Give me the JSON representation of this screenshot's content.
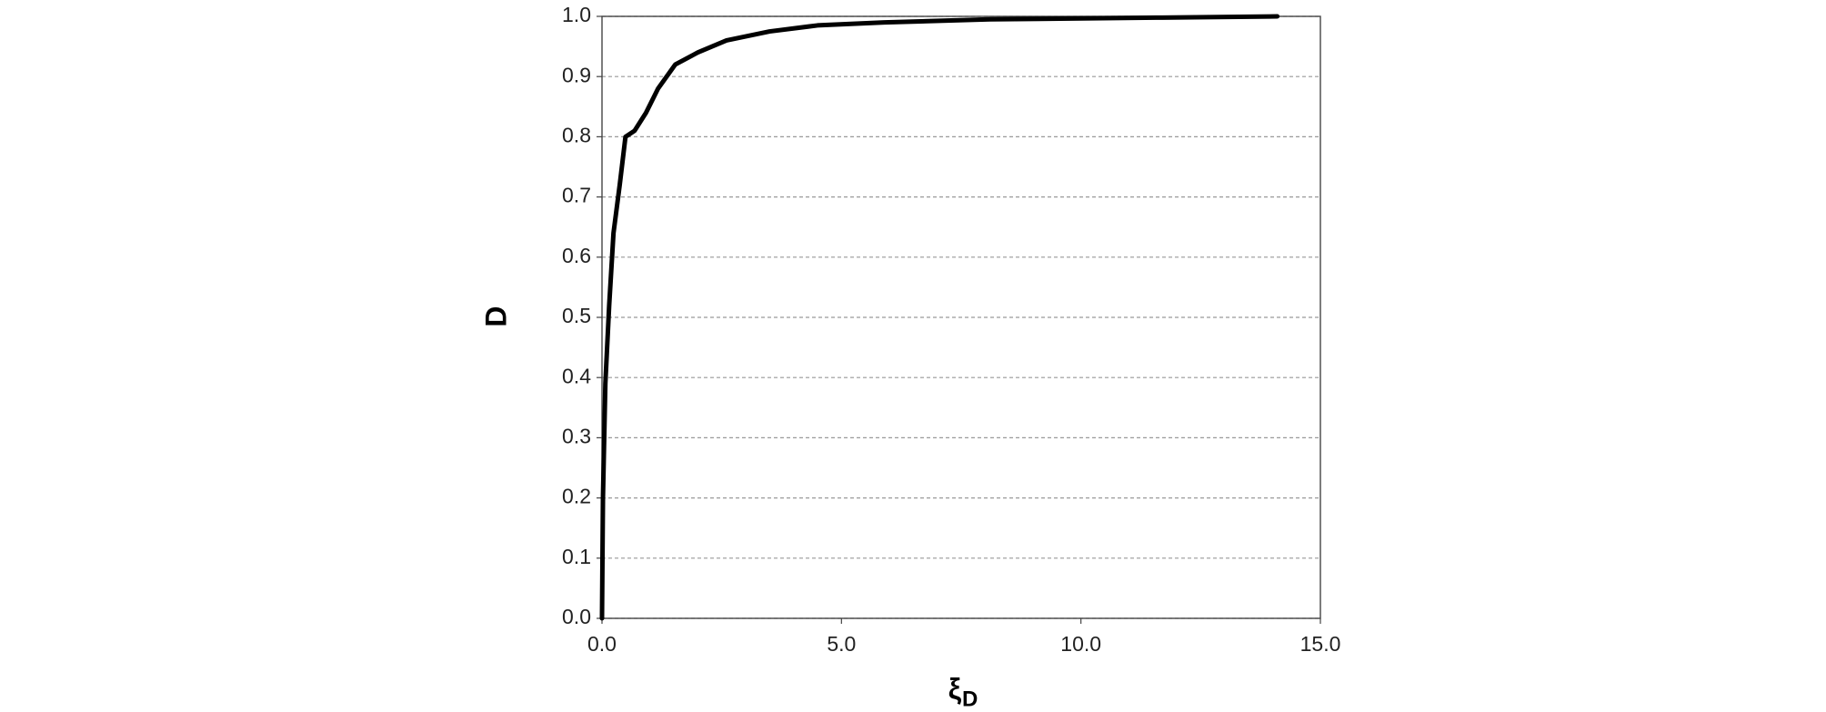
{
  "chart_data": {
    "type": "line",
    "x_label": "ξ",
    "x_label_subscript": "D",
    "y_label": "D",
    "x": [
      0,
      0.02,
      0.07,
      0.15,
      0.24,
      0.37,
      0.49,
      0.68,
      0.92,
      1.17,
      1.53,
      2.0,
      2.6,
      3.5,
      4.5,
      5.9,
      8.1,
      11.7,
      14.1
    ],
    "values": [
      0,
      0.2,
      0.39,
      0.52,
      0.64,
      0.72,
      0.8,
      0.81,
      0.84,
      0.88,
      0.92,
      0.94,
      0.96,
      0.975,
      0.985,
      0.99,
      0.995,
      0.998,
      1.0
    ],
    "color": "#000000",
    "xlim": [
      0,
      15
    ],
    "ylim": [
      0,
      1
    ],
    "xticks": [
      {
        "value": 0,
        "label": "0.0"
      },
      {
        "value": 5,
        "label": "5.0"
      },
      {
        "value": 10,
        "label": "10.0"
      },
      {
        "value": 15,
        "label": "15.0"
      }
    ],
    "yticks": [
      {
        "value": 0,
        "label": "0.0"
      },
      {
        "value": 0.1,
        "label": "0.1"
      },
      {
        "value": 0.2,
        "label": "0.2"
      },
      {
        "value": 0.3,
        "label": "0.3"
      },
      {
        "value": 0.4,
        "label": "0.4"
      },
      {
        "value": 0.5,
        "label": "0.5"
      },
      {
        "value": 0.6,
        "label": "0.6"
      },
      {
        "value": 0.7,
        "label": "0.7"
      },
      {
        "value": 0.8,
        "label": "0.8"
      },
      {
        "value": 0.9,
        "label": "0.9"
      },
      {
        "value": 1,
        "label": "1.0"
      }
    ],
    "grid": true
  }
}
